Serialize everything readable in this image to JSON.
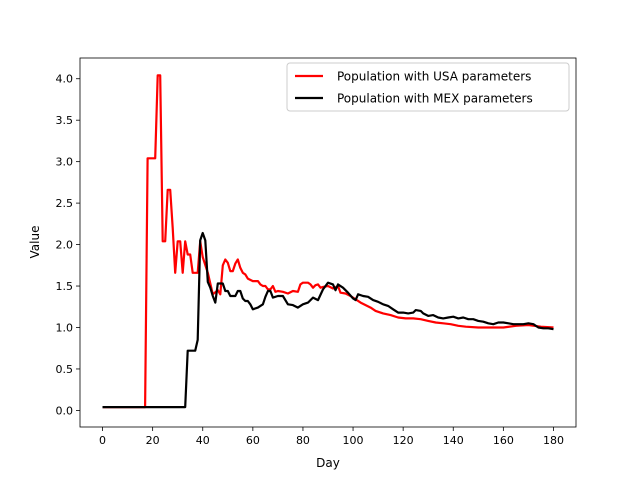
{
  "chart_data": {
    "type": "line",
    "title": "",
    "xlabel": "Day",
    "ylabel": "Value",
    "xlim": [
      -9,
      189
    ],
    "ylim": [
      -0.2,
      4.25
    ],
    "xticks": [
      0,
      20,
      40,
      60,
      80,
      100,
      120,
      140,
      160,
      180
    ],
    "yticks": [
      0.0,
      0.5,
      1.0,
      1.5,
      2.0,
      2.5,
      3.0,
      3.5,
      4.0
    ],
    "xtick_labels": [
      "0",
      "20",
      "40",
      "60",
      "80",
      "100",
      "120",
      "140",
      "160",
      "180"
    ],
    "ytick_labels": [
      "0.0",
      "0.5",
      "1.0",
      "1.5",
      "2.0",
      "2.5",
      "3.0",
      "3.5",
      "4.0"
    ],
    "grid": false,
    "legend_position": "top-right",
    "series": [
      {
        "name": "Population with USA parameters",
        "color": "#ff0000",
        "points": [
          [
            0,
            0.04
          ],
          [
            17,
            0.04
          ],
          [
            18,
            3.04
          ],
          [
            21,
            3.04
          ],
          [
            22,
            4.04
          ],
          [
            23,
            4.04
          ],
          [
            24,
            2.04
          ],
          [
            25,
            2.04
          ],
          [
            26,
            2.66
          ],
          [
            27,
            2.66
          ],
          [
            28,
            2.2
          ],
          [
            29,
            1.66
          ],
          [
            30,
            2.04
          ],
          [
            31,
            2.04
          ],
          [
            32,
            1.66
          ],
          [
            33,
            2.04
          ],
          [
            34,
            1.88
          ],
          [
            35,
            1.88
          ],
          [
            36,
            1.66
          ],
          [
            38,
            1.66
          ],
          [
            39,
            2.04
          ],
          [
            40,
            1.85
          ],
          [
            42,
            1.66
          ],
          [
            44,
            1.4
          ],
          [
            46,
            1.45
          ],
          [
            47,
            1.4
          ],
          [
            48,
            1.75
          ],
          [
            49,
            1.82
          ],
          [
            50,
            1.78
          ],
          [
            51,
            1.68
          ],
          [
            52,
            1.68
          ],
          [
            53,
            1.77
          ],
          [
            54,
            1.82
          ],
          [
            55,
            1.72
          ],
          [
            56,
            1.66
          ],
          [
            57,
            1.64
          ],
          [
            58,
            1.59
          ],
          [
            60,
            1.56
          ],
          [
            62,
            1.56
          ],
          [
            63,
            1.52
          ],
          [
            64,
            1.5
          ],
          [
            65,
            1.5
          ],
          [
            66,
            1.46
          ],
          [
            67,
            1.46
          ],
          [
            68,
            1.5
          ],
          [
            69,
            1.43
          ],
          [
            70,
            1.44
          ],
          [
            72,
            1.43
          ],
          [
            74,
            1.41
          ],
          [
            76,
            1.44
          ],
          [
            78,
            1.43
          ],
          [
            79,
            1.52
          ],
          [
            80,
            1.54
          ],
          [
            82,
            1.54
          ],
          [
            83,
            1.52
          ],
          [
            84,
            1.48
          ],
          [
            85,
            1.51
          ],
          [
            86,
            1.52
          ],
          [
            87,
            1.48
          ],
          [
            88,
            1.49
          ],
          [
            90,
            1.5
          ],
          [
            92,
            1.47
          ],
          [
            94,
            1.5
          ],
          [
            95,
            1.42
          ],
          [
            97,
            1.41
          ],
          [
            99,
            1.38
          ],
          [
            101,
            1.34
          ],
          [
            103,
            1.3
          ],
          [
            105,
            1.27
          ],
          [
            107,
            1.24
          ],
          [
            109,
            1.2
          ],
          [
            112,
            1.17
          ],
          [
            115,
            1.15
          ],
          [
            118,
            1.12
          ],
          [
            121,
            1.11
          ],
          [
            124,
            1.11
          ],
          [
            127,
            1.1
          ],
          [
            130,
            1.08
          ],
          [
            133,
            1.06
          ],
          [
            136,
            1.05
          ],
          [
            139,
            1.04
          ],
          [
            142,
            1.02
          ],
          [
            145,
            1.01
          ],
          [
            150,
            1.0
          ],
          [
            155,
            1.0
          ],
          [
            160,
            1.0
          ],
          [
            165,
            1.02
          ],
          [
            170,
            1.03
          ],
          [
            175,
            1.01
          ],
          [
            180,
            1.0
          ]
        ]
      },
      {
        "name": "Population with MEX parameters",
        "color": "#000000",
        "points": [
          [
            0,
            0.04
          ],
          [
            33,
            0.04
          ],
          [
            34,
            0.72
          ],
          [
            37,
            0.72
          ],
          [
            38,
            0.85
          ],
          [
            39,
            2.05
          ],
          [
            40,
            2.14
          ],
          [
            41,
            2.05
          ],
          [
            42,
            1.55
          ],
          [
            43,
            1.48
          ],
          [
            44,
            1.38
          ],
          [
            45,
            1.3
          ],
          [
            46,
            1.53
          ],
          [
            48,
            1.53
          ],
          [
            49,
            1.44
          ],
          [
            50,
            1.44
          ],
          [
            51,
            1.38
          ],
          [
            53,
            1.38
          ],
          [
            54,
            1.44
          ],
          [
            55,
            1.44
          ],
          [
            56,
            1.35
          ],
          [
            57,
            1.32
          ],
          [
            58,
            1.32
          ],
          [
            59,
            1.28
          ],
          [
            60,
            1.22
          ],
          [
            62,
            1.24
          ],
          [
            64,
            1.28
          ],
          [
            65,
            1.37
          ],
          [
            66,
            1.44
          ],
          [
            67,
            1.44
          ],
          [
            68,
            1.36
          ],
          [
            70,
            1.38
          ],
          [
            72,
            1.38
          ],
          [
            74,
            1.28
          ],
          [
            76,
            1.27
          ],
          [
            78,
            1.24
          ],
          [
            80,
            1.28
          ],
          [
            82,
            1.3
          ],
          [
            84,
            1.36
          ],
          [
            86,
            1.33
          ],
          [
            88,
            1.46
          ],
          [
            90,
            1.54
          ],
          [
            92,
            1.52
          ],
          [
            93,
            1.45
          ],
          [
            94,
            1.52
          ],
          [
            96,
            1.48
          ],
          [
            98,
            1.42
          ],
          [
            100,
            1.35
          ],
          [
            101,
            1.33
          ],
          [
            102,
            1.4
          ],
          [
            104,
            1.38
          ],
          [
            106,
            1.37
          ],
          [
            108,
            1.33
          ],
          [
            110,
            1.31
          ],
          [
            112,
            1.28
          ],
          [
            114,
            1.26
          ],
          [
            116,
            1.22
          ],
          [
            118,
            1.18
          ],
          [
            120,
            1.18
          ],
          [
            122,
            1.17
          ],
          [
            124,
            1.18
          ],
          [
            125,
            1.21
          ],
          [
            127,
            1.2
          ],
          [
            128,
            1.17
          ],
          [
            130,
            1.14
          ],
          [
            132,
            1.15
          ],
          [
            134,
            1.12
          ],
          [
            136,
            1.11
          ],
          [
            138,
            1.12
          ],
          [
            140,
            1.13
          ],
          [
            142,
            1.11
          ],
          [
            144,
            1.12
          ],
          [
            146,
            1.1
          ],
          [
            148,
            1.1
          ],
          [
            150,
            1.08
          ],
          [
            152,
            1.07
          ],
          [
            154,
            1.05
          ],
          [
            156,
            1.04
          ],
          [
            158,
            1.06
          ],
          [
            160,
            1.06
          ],
          [
            162,
            1.05
          ],
          [
            164,
            1.04
          ],
          [
            166,
            1.04
          ],
          [
            168,
            1.04
          ],
          [
            170,
            1.05
          ],
          [
            172,
            1.04
          ],
          [
            174,
            1.0
          ],
          [
            176,
            0.99
          ],
          [
            178,
            0.99
          ],
          [
            180,
            0.98
          ]
        ]
      }
    ]
  }
}
